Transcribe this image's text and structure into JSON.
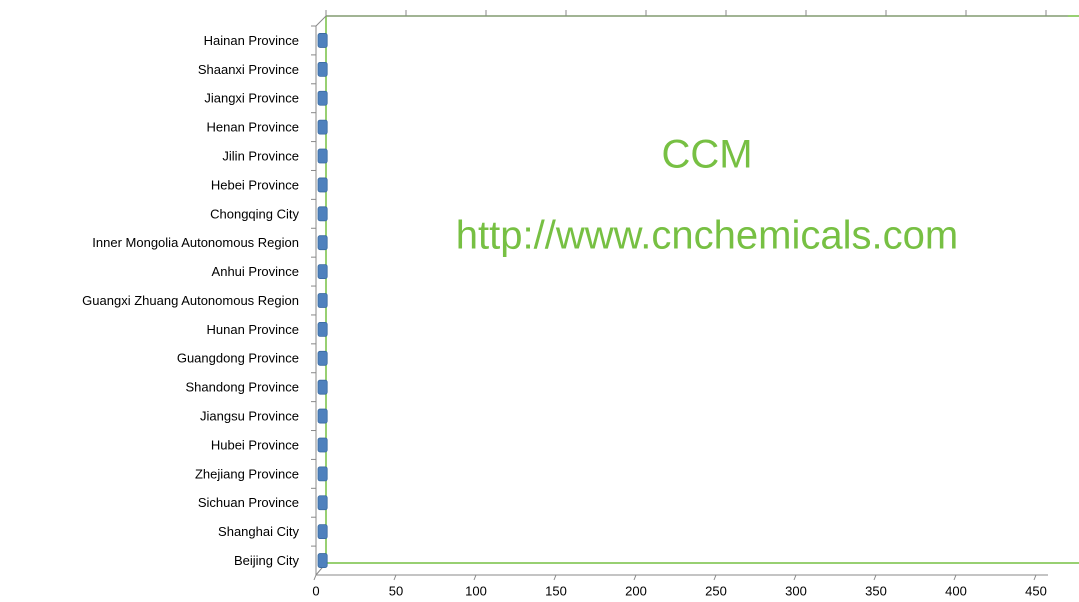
{
  "chart_data": {
    "type": "bar",
    "orientation": "horizontal",
    "categories": [
      "Hainan Province",
      "Shaanxi Province",
      "Jiangxi Province",
      "Henan Province",
      "Jilin Province",
      "Hebei Province",
      "Chongqing City",
      "Inner Mongolia Autonomous Region",
      "Anhui Province",
      "Guangxi Zhuang Autonomous Region",
      "Hunan Province",
      "Guangdong Province",
      "Shandong Province",
      "Jiangsu Province",
      "Hubei Province",
      "Zhejiang Province",
      "Sichuan Province",
      "Shanghai City",
      "Beijing City"
    ],
    "values": [
      2,
      2,
      2,
      2,
      2,
      2,
      2,
      2,
      2,
      2,
      2,
      2,
      2,
      2,
      2,
      2,
      2,
      2,
      2
    ],
    "color": "#4f81bd",
    "xlim": [
      0,
      470
    ],
    "xticks": [
      0,
      50,
      100,
      150,
      200,
      250,
      300,
      350,
      400,
      450
    ],
    "annotations": [
      "CCM",
      "http://www.cnchemicals.com"
    ]
  }
}
